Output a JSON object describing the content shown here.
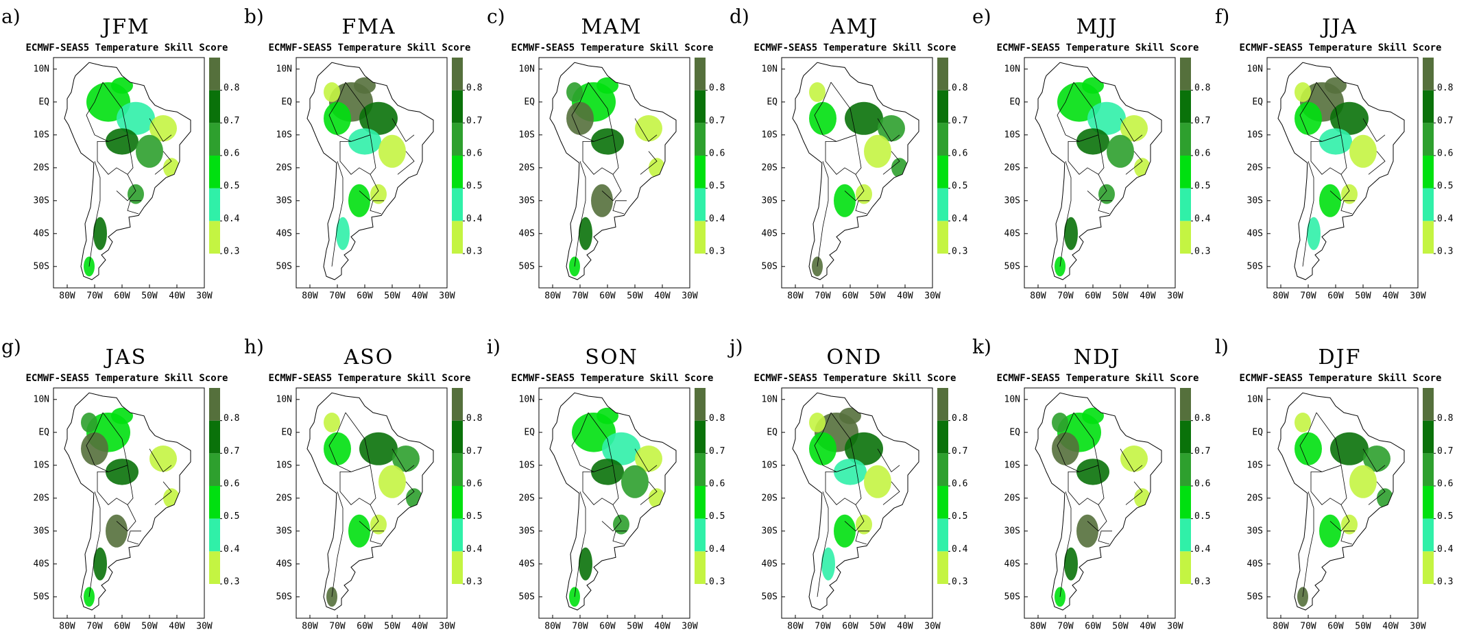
{
  "panels": [
    {
      "label": "a)",
      "title": "JFM",
      "subtitle": "ECMWF-SEAS5 Temperature Skill Score"
    },
    {
      "label": "b)",
      "title": "FMA",
      "subtitle": "ECMWF-SEAS5 Temperature Skill Score"
    },
    {
      "label": "c)",
      "title": "MAM",
      "subtitle": "ECMWF-SEAS5 Temperature Skill Score"
    },
    {
      "label": "d)",
      "title": "AMJ",
      "subtitle": "ECMWF-SEAS5 Temperature Skill Score"
    },
    {
      "label": "e)",
      "title": "MJJ",
      "subtitle": "ECMWF-SEAS5 Temperature Skill Score"
    },
    {
      "label": "f)",
      "title": "JJA",
      "subtitle": "ECMWF-SEAS5 Temperature Skill Score"
    },
    {
      "label": "g)",
      "title": "JAS",
      "subtitle": "ECMWF-SEAS5 Temperature Skill Score"
    },
    {
      "label": "h)",
      "title": "ASO",
      "subtitle": "ECMWF-SEAS5 Temperature Skill Score"
    },
    {
      "label": "i)",
      "title": "SON",
      "subtitle": "ECMWF-SEAS5 Temperature Skill Score"
    },
    {
      "label": "j)",
      "title": "OND",
      "subtitle": "ECMWF-SEAS5 Temperature Skill Score"
    },
    {
      "label": "k)",
      "title": "NDJ",
      "subtitle": "ECMWF-SEAS5 Temperature Skill Score"
    },
    {
      "label": "l)",
      "title": "DJF",
      "subtitle": "ECMWF-SEAS5 Temperature Skill Score"
    }
  ],
  "map": {
    "xlim": [
      -85,
      -30
    ],
    "ylim": [
      -56.5,
      13.5
    ],
    "xticks": [
      {
        "value": -80,
        "label": "80W"
      },
      {
        "value": -70,
        "label": "70W"
      },
      {
        "value": -60,
        "label": "60W"
      },
      {
        "value": -50,
        "label": "50W"
      },
      {
        "value": -40,
        "label": "40W"
      },
      {
        "value": -30,
        "label": "30W"
      }
    ],
    "yticks": [
      {
        "value": 10,
        "label": "10N"
      },
      {
        "value": 0,
        "label": "EQ"
      },
      {
        "value": -10,
        "label": "10S"
      },
      {
        "value": -20,
        "label": "20S"
      },
      {
        "value": -30,
        "label": "30S"
      },
      {
        "value": -40,
        "label": "40S"
      },
      {
        "value": -50,
        "label": "50S"
      }
    ]
  },
  "colorbar": {
    "lim": [
      0.3,
      0.9
    ],
    "ticks": [
      0.3,
      0.4,
      0.5,
      0.6,
      0.7,
      0.8
    ],
    "colors": [
      "#c4f442",
      "#30f0a8",
      "#00e010",
      "#2ea02e",
      "#0a720a",
      "#55703c"
    ]
  }
}
